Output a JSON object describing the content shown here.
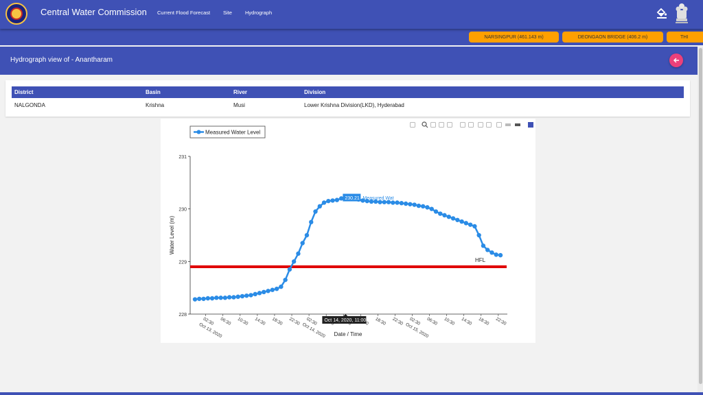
{
  "app": {
    "title": "Central Water Commission"
  },
  "nav": {
    "items": [
      "Current Flood Forecast",
      "Site",
      "Hydrograph"
    ]
  },
  "ticker": {
    "chips": [
      "NARSINGPUR (461.143 m)",
      "DEONGAON BRIDGE (406.2 m)",
      "THI"
    ]
  },
  "page": {
    "title": "Hydrograph view of - Anantharam"
  },
  "site_info": {
    "headers": [
      "District",
      "Basin",
      "River",
      "Division"
    ],
    "values": [
      "NALGONDA",
      "Krishna",
      "Musi",
      "Lower Krishna Division(LKD), Hyderabad"
    ]
  },
  "toolbar": {
    "icons": [
      "camera-icon",
      "zoom-icon",
      "pan-icon",
      "box-select-icon",
      "lasso-select-icon",
      "zoom-in-icon",
      "zoom-out-icon",
      "autoscale-icon",
      "reset-axes-icon",
      "spike-lines-icon",
      "show-closest-icon",
      "compare-data-icon",
      "plotly-logo-icon"
    ]
  },
  "colors": {
    "primary": "#3f51b5",
    "chip": "#ffa000",
    "series": "#2b8ce6",
    "hfl": "#e00000",
    "back_button": "#ec407a"
  },
  "chart_data": {
    "type": "line",
    "legend": [
      "Measured Water Level"
    ],
    "legend_position": "top-left",
    "ylabel": "Water Level (m)",
    "xlabel": "Date / Time",
    "ylim": [
      228,
      231
    ],
    "yticks": [
      "228",
      "229",
      "230",
      "231"
    ],
    "xticks": [
      {
        "t": 2.5,
        "label": "02:30",
        "date": "Oct 13, 2020"
      },
      {
        "t": 6.5,
        "label": "06:30"
      },
      {
        "t": 10.5,
        "label": "10:30"
      },
      {
        "t": 14.5,
        "label": "14:30"
      },
      {
        "t": 18.5,
        "label": "18:30"
      },
      {
        "t": 22.5,
        "label": "22:30"
      },
      {
        "t": 26.5,
        "label": "02:30",
        "date": "Oct 14, 2020"
      },
      {
        "t": 30.5,
        "label": "06:30"
      },
      {
        "t": 34.5,
        "label": "10:30"
      },
      {
        "t": 38.5,
        "label": "14:30"
      },
      {
        "t": 42.5,
        "label": "18:30"
      },
      {
        "t": 46.5,
        "label": "22:30"
      },
      {
        "t": 50.5,
        "label": "02:30",
        "date": "Oct 15, 2020"
      },
      {
        "t": 54.5,
        "label": "06:30"
      },
      {
        "t": 58.5,
        "label": "10:30"
      },
      {
        "t": 62.5,
        "label": "14:30"
      },
      {
        "t": 66.5,
        "label": "18:30"
      },
      {
        "t": 70.5,
        "label": "22:30"
      }
    ],
    "series": [
      {
        "name": "Measured Water Level",
        "x": [
          0,
          1,
          2,
          3,
          4,
          5,
          6,
          7,
          8,
          9,
          10,
          11,
          12,
          13,
          14,
          15,
          16,
          17,
          18,
          19,
          20,
          21,
          22,
          23,
          24,
          25,
          26,
          27,
          28,
          29,
          30,
          31,
          32,
          33,
          34,
          35,
          36,
          37,
          38,
          39,
          40,
          41,
          42,
          43,
          44,
          45,
          46,
          47,
          48,
          49,
          50,
          51,
          52,
          53,
          54,
          55,
          56,
          57,
          58,
          59,
          60,
          61,
          62,
          63,
          64,
          65,
          66,
          67,
          68,
          69,
          70,
          71
        ],
        "y": [
          228.28,
          228.29,
          228.29,
          228.3,
          228.3,
          228.31,
          228.31,
          228.31,
          228.32,
          228.32,
          228.33,
          228.34,
          228.35,
          228.36,
          228.38,
          228.4,
          228.42,
          228.44,
          228.46,
          228.48,
          228.52,
          228.65,
          228.85,
          229.0,
          229.15,
          229.35,
          229.5,
          229.75,
          229.95,
          230.05,
          230.12,
          230.15,
          230.16,
          230.17,
          230.2,
          230.21,
          230.21,
          230.2,
          230.18,
          230.16,
          230.15,
          230.14,
          230.14,
          230.13,
          230.13,
          230.13,
          230.12,
          230.12,
          230.11,
          230.1,
          230.09,
          230.08,
          230.06,
          230.05,
          230.03,
          230.0,
          229.95,
          229.91,
          229.88,
          229.85,
          229.82,
          229.79,
          229.76,
          229.73,
          229.7,
          229.67,
          229.5,
          229.3,
          229.22,
          229.17,
          229.13,
          229.12
        ]
      }
    ],
    "hfl": {
      "label": "HFL",
      "value": 228.9
    },
    "hover": {
      "x": 35,
      "value_label": "230.21",
      "series_label": "Measured Wat",
      "x_label": "Oct 14, 2020, 11:00"
    }
  }
}
